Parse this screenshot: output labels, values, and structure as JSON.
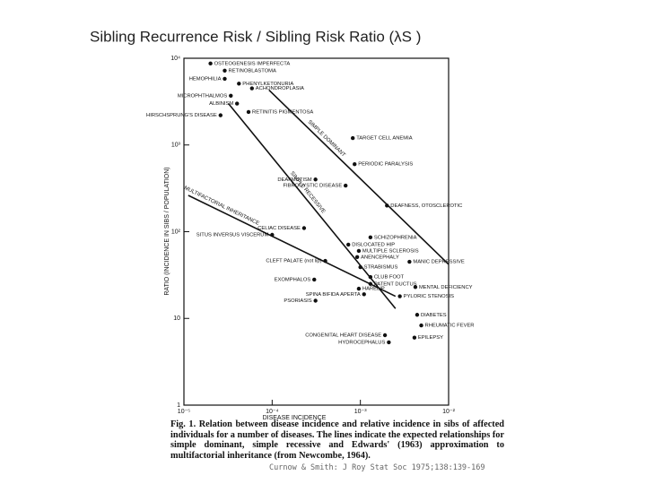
{
  "chart_data": {
    "type": "scatter",
    "title": "Sibling Recurrence Risk / Sibling Risk Ratio (λS )",
    "x_label": "DISEASE INCIDENCE",
    "y_label": "RATIO (INCIDENCE IN SIBS / POPULATION)",
    "log_x": true,
    "log_y": true,
    "xlim": [
      1e-05,
      0.01
    ],
    "ylim": [
      1,
      10000
    ],
    "xticks": [
      {
        "value": 1e-05,
        "label": "10⁻⁵"
      },
      {
        "value": 0.0001,
        "label": "10⁻⁴"
      },
      {
        "value": 0.001,
        "label": "10⁻³"
      },
      {
        "value": 0.01,
        "label": "10⁻²"
      }
    ],
    "yticks": [
      1,
      10,
      {
        "value": 100,
        "label": "10²"
      },
      {
        "value": 1000,
        "label": "10³"
      },
      {
        "value": 10000,
        "label": "10⁴"
      }
    ],
    "color": "#111111",
    "point_labels": [
      "OSTEOGENESIS IMPERFECTA",
      "RETINOBLASTOMA",
      "HEMOPHILIA",
      "PHENYLKETONURIA",
      "ACHONDROPLASIA",
      "MICROPHTHALMOS",
      "ALBINISM",
      "HIRSCHSPRUNG'S DISEASE",
      "RETINITIS PIGMENTOSA",
      "TARGET CELL ANEMIA",
      "PERIODIC PARALYSIS",
      "DEAFMUTISM",
      "FIBROCYSTIC DISEASE",
      "DEAFNESS, OTOSCLEROTIC",
      "CELIAC DISEASE",
      "SITUS INVERSUS VISCERUM",
      "SCHIZOPHRENIA",
      "DISLOCATED HIP",
      "MULTIPLE SCLEROSIS",
      "ANENCEPHALY",
      "MANIC DEPRESSIVE",
      "CLEFT PALATE (not lip)",
      "STRABISMUS",
      "CLUB FOOT",
      "EXOMPHALOS",
      "PATENT DUCTUS",
      "MENTAL DEFICIENCY",
      "HARELIP",
      "SPINA BIFIDA APERTA",
      "PYLORIC STENOSIS",
      "PSORIASIS",
      "DIABETES",
      "RHEUMATIC FEVER",
      "CONGENITAL HEART DISEASE",
      "EPILEPSY",
      "HYDROCEPHALUS"
    ],
    "x": [
      2e-05,
      2.9e-05,
      2.9e-05,
      4.2e-05,
      5.9e-05,
      3.4e-05,
      4e-05,
      2.6e-05,
      5.4e-05,
      0.00082,
      0.00086,
      0.00031,
      0.00068,
      0.002,
      0.00023,
      0.0001,
      0.0013,
      0.00073,
      0.00096,
      0.00092,
      0.0036,
      0.0004,
      0.001,
      0.0013,
      0.0003,
      0.0013,
      0.0042,
      0.00096,
      0.0011,
      0.0028,
      0.00031,
      0.0044,
      0.0049,
      0.0019,
      0.0041,
      0.0021
    ],
    "values": [
      8700,
      7200,
      5800,
      5100,
      4500,
      3700,
      3000,
      2200,
      2400,
      1200,
      600,
      400,
      340,
      200,
      110,
      92,
      86,
      71,
      60,
      51,
      45,
      46,
      39,
      30,
      28,
      25,
      23,
      22,
      19,
      18,
      16,
      11,
      8.3,
      6.4,
      6,
      5.3
    ],
    "lines": [
      {
        "name": "SIMPLE DOMINANT",
        "x": [
          9.2e-05,
          0.01
        ],
        "values": [
          4300,
          42
        ]
      },
      {
        "name": "SIMPLE RECESSIVE",
        "x": [
          3.2e-05,
          0.0025
        ],
        "values": [
          3000,
          13
        ]
      },
      {
        "name": "MULTIFACTORIAL INHERITANCE",
        "x": [
          1.12e-05,
          0.0025
        ],
        "values": [
          262,
          18
        ]
      }
    ],
    "caption": "Fig. 1. Relation between disease incidence and relative incidence in sibs of affected individuals for a number of diseases. The lines indicate the expected relationships for simple dominant, simple recessive and Edwards' (1963) approximation to multifactorial inheritance (from Newcombe, 1964).",
    "source": "Curnow & Smith: J Roy Stat Soc 1975;138:139-169"
  }
}
